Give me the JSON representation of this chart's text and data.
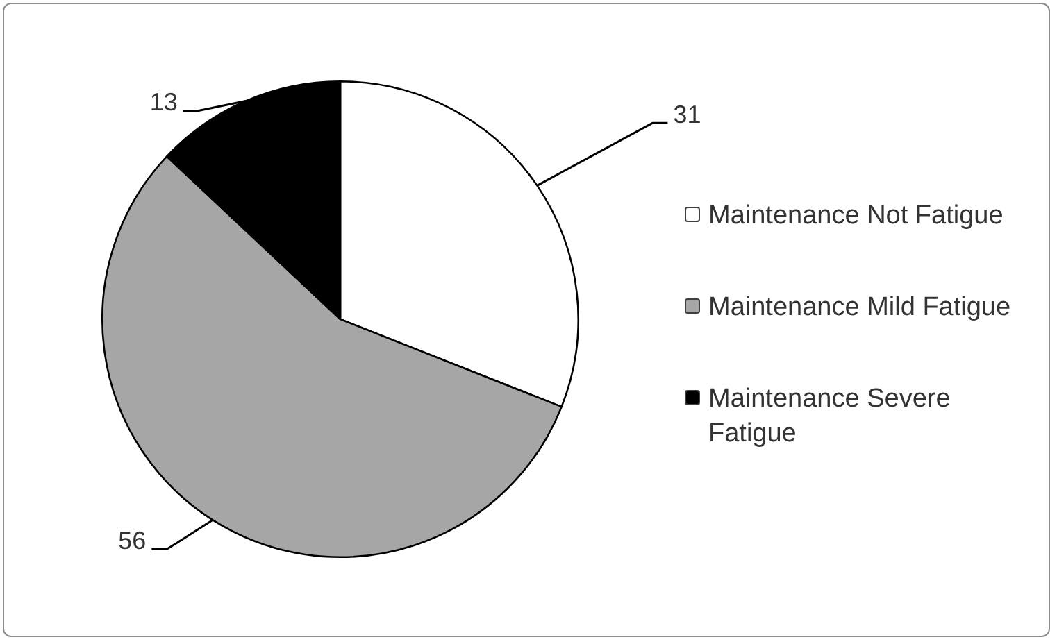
{
  "chart_data": {
    "type": "pie",
    "categories": [
      "Maintenance Not Fatigue",
      "Maintenance Mild Fatigue",
      "Maintenance Severe Fatigue"
    ],
    "values": [
      31,
      56,
      13
    ],
    "colors": [
      "#ffffff",
      "#a6a6a6",
      "#000000"
    ],
    "data_labels": true,
    "legend": "right"
  }
}
